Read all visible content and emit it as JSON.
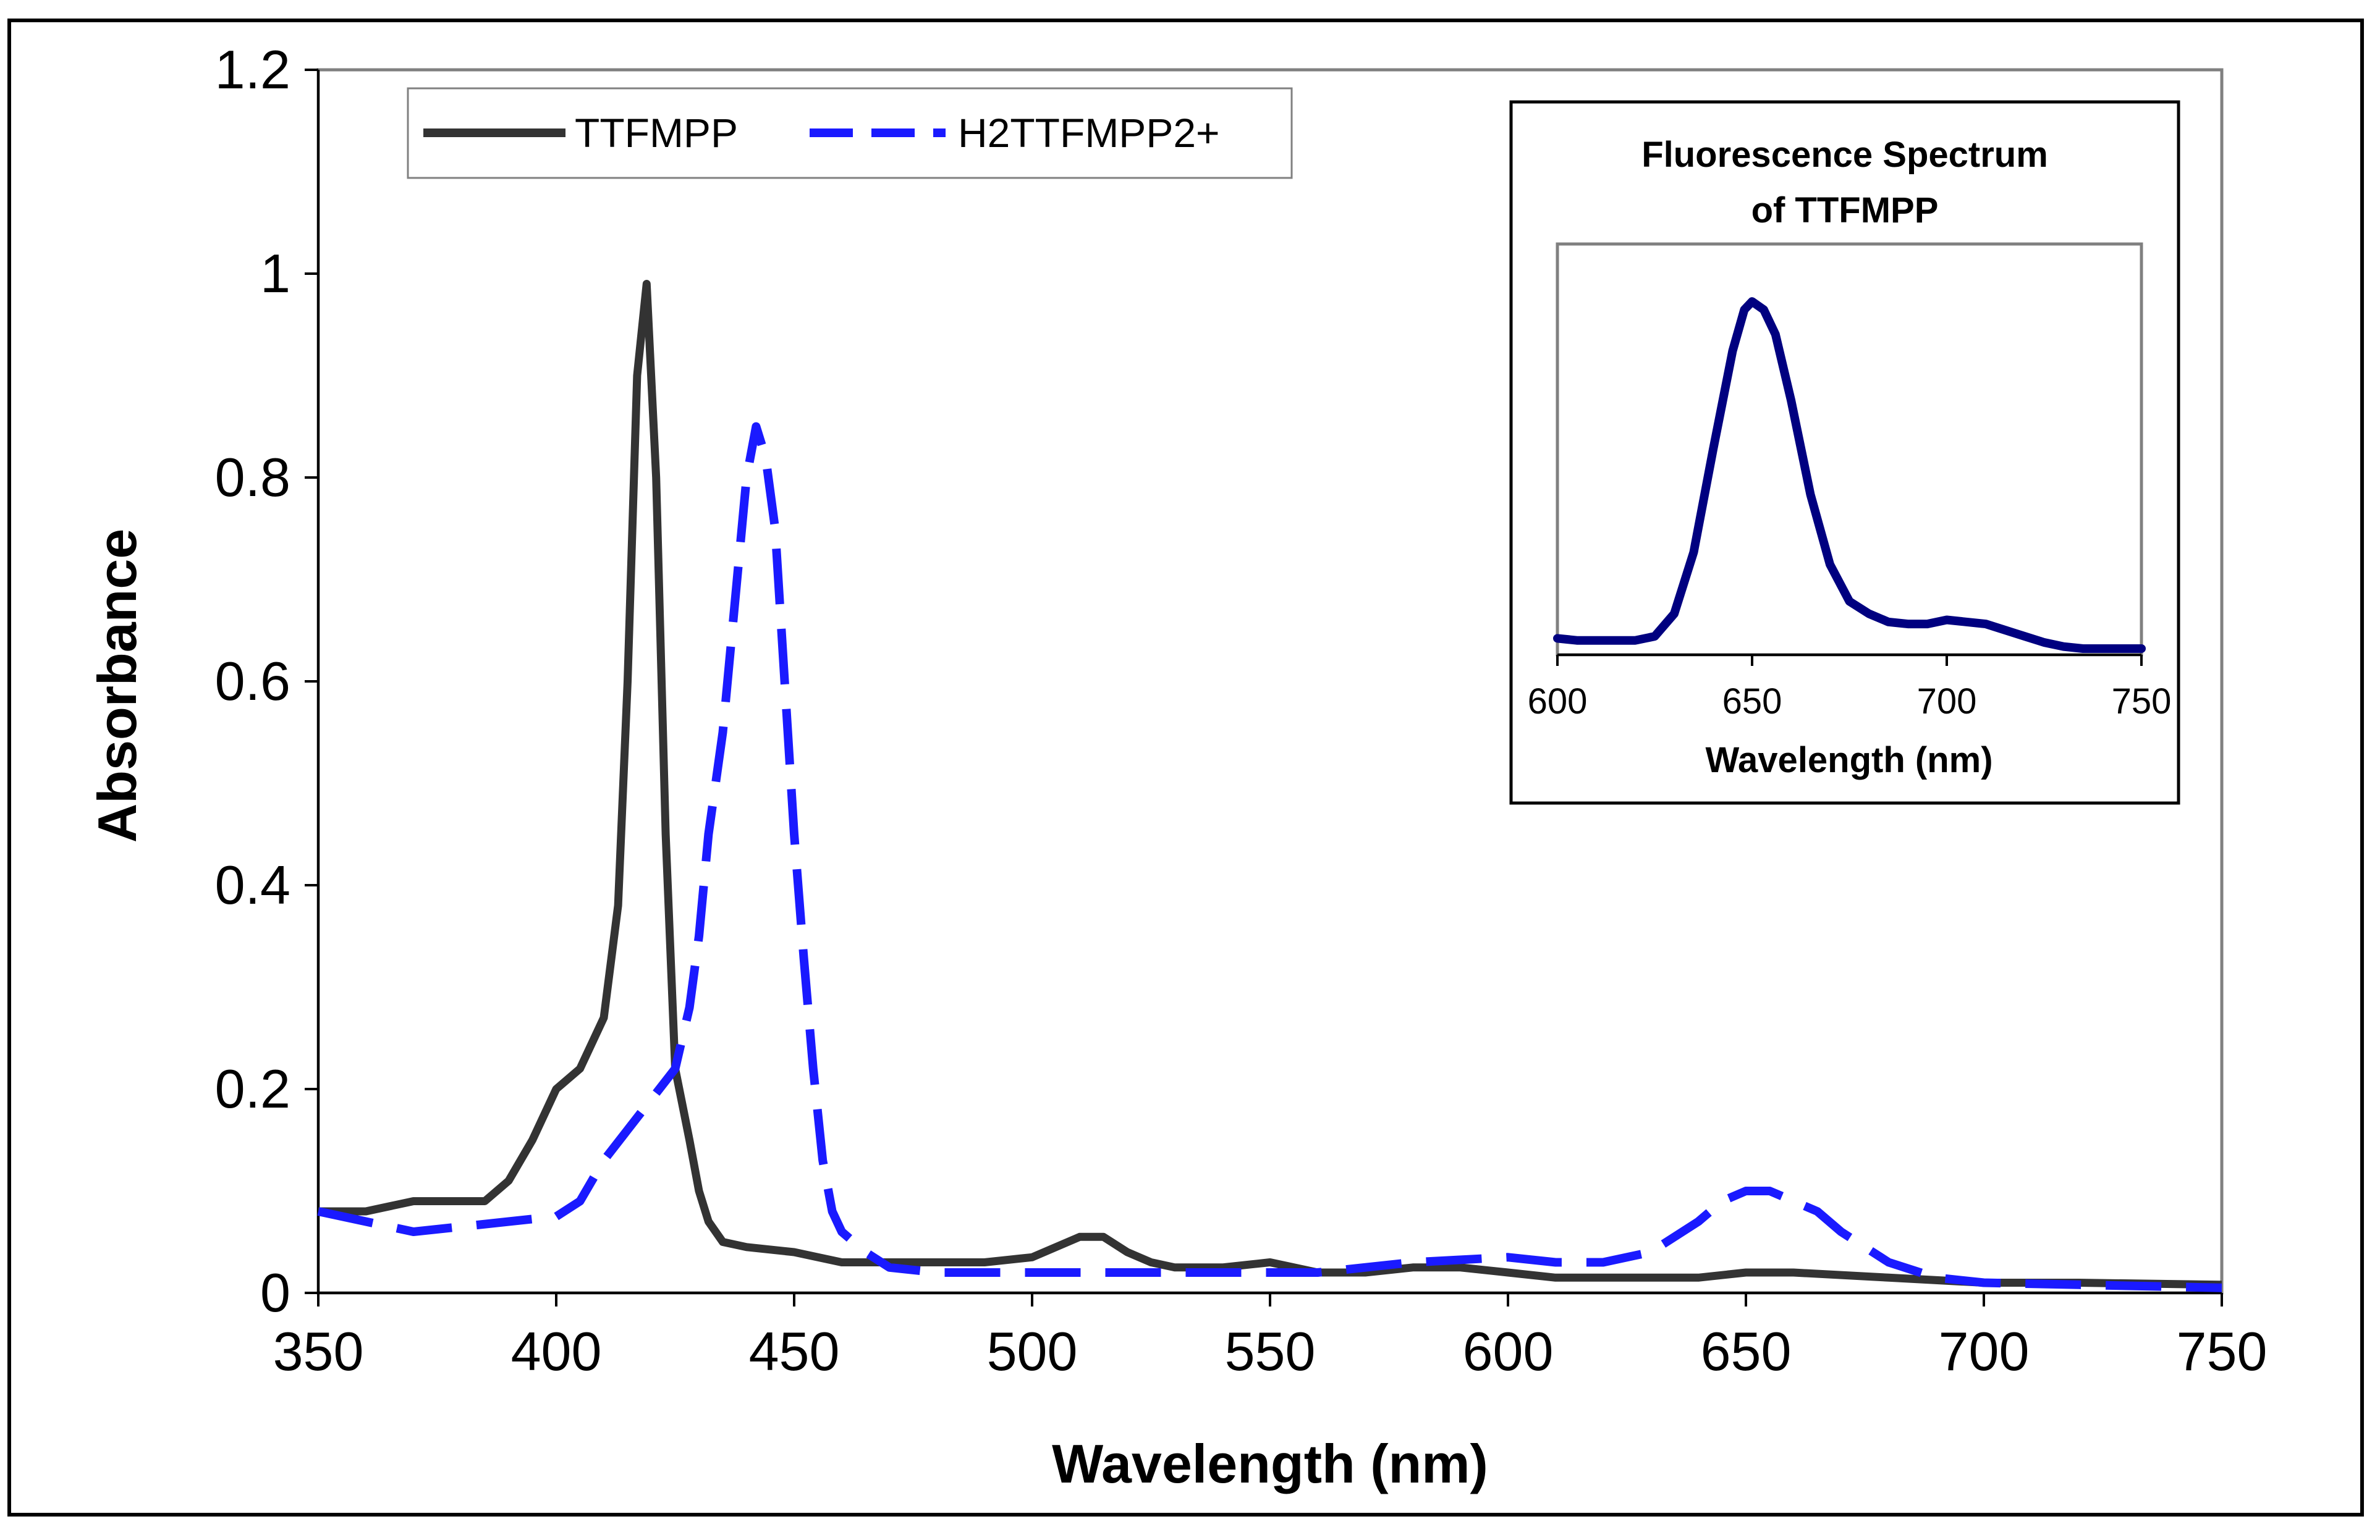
{
  "chart_data": [
    {
      "type": "line",
      "title": "",
      "xlabel": "Wavelength (nm)",
      "ylabel": "Absorbance",
      "xlim": [
        350,
        750
      ],
      "ylim": [
        0,
        1.2
      ],
      "xticks": [
        350,
        400,
        450,
        500,
        550,
        600,
        650,
        700,
        750
      ],
      "xtick_labels": [
        "350",
        "400",
        "450",
        "500",
        "550",
        "600",
        "650",
        "700",
        "750"
      ],
      "yticks": [
        0,
        0.2,
        0.4,
        0.6,
        0.8,
        1,
        1.2
      ],
      "ytick_labels": [
        "0",
        "0.2",
        "0.4",
        "0.6",
        "0.8",
        "1",
        "1.2"
      ],
      "legend_position": "top-left",
      "series": [
        {
          "name": "TTFMPP",
          "color": "#333333",
          "style": "solid",
          "x": [
            350,
            360,
            370,
            385,
            390,
            395,
            400,
            405,
            410,
            413,
            415,
            417,
            419,
            421,
            423,
            425,
            428,
            430,
            432,
            435,
            440,
            450,
            460,
            470,
            480,
            490,
            500,
            505,
            510,
            515,
            520,
            525,
            530,
            540,
            550,
            560,
            570,
            580,
            590,
            600,
            610,
            620,
            640,
            650,
            660,
            680,
            700,
            720,
            750
          ],
          "y": [
            0.08,
            0.08,
            0.09,
            0.09,
            0.11,
            0.15,
            0.2,
            0.22,
            0.27,
            0.38,
            0.6,
            0.9,
            0.99,
            0.8,
            0.45,
            0.22,
            0.15,
            0.1,
            0.07,
            0.05,
            0.045,
            0.04,
            0.03,
            0.03,
            0.03,
            0.03,
            0.035,
            0.045,
            0.055,
            0.055,
            0.04,
            0.03,
            0.025,
            0.025,
            0.03,
            0.02,
            0.02,
            0.025,
            0.025,
            0.02,
            0.015,
            0.015,
            0.015,
            0.02,
            0.02,
            0.015,
            0.01,
            0.01,
            0.008
          ]
        },
        {
          "name": "H2TTFMPP2+",
          "color": "#1a1aff",
          "style": "dashed",
          "x": [
            350,
            360,
            370,
            380,
            390,
            400,
            405,
            410,
            415,
            420,
            425,
            428,
            430,
            432,
            435,
            438,
            440,
            442,
            444,
            446,
            448,
            450,
            452,
            454,
            456,
            458,
            460,
            465,
            470,
            480,
            490,
            500,
            520,
            540,
            560,
            580,
            600,
            610,
            620,
            630,
            640,
            645,
            650,
            655,
            660,
            665,
            670,
            680,
            690,
            700,
            720,
            750
          ],
          "y": [
            0.08,
            0.07,
            0.06,
            0.065,
            0.07,
            0.075,
            0.09,
            0.13,
            0.16,
            0.19,
            0.22,
            0.28,
            0.35,
            0.45,
            0.55,
            0.7,
            0.8,
            0.85,
            0.82,
            0.75,
            0.6,
            0.45,
            0.33,
            0.22,
            0.13,
            0.08,
            0.06,
            0.04,
            0.025,
            0.02,
            0.02,
            0.02,
            0.02,
            0.02,
            0.02,
            0.03,
            0.035,
            0.03,
            0.03,
            0.04,
            0.07,
            0.09,
            0.1,
            0.1,
            0.09,
            0.08,
            0.06,
            0.03,
            0.015,
            0.01,
            0.008,
            0.005
          ]
        }
      ]
    },
    {
      "type": "line",
      "title": "Fluorescence Spectrum of TTFMPP",
      "title_lines": [
        "Fluorescence Spectrum",
        "of TTFMPP"
      ],
      "xlabel": "Wavelength (nm)",
      "ylabel": "",
      "xlim": [
        600,
        750
      ],
      "ylim": [
        0,
        1
      ],
      "xticks": [
        600,
        650,
        700,
        750
      ],
      "xtick_labels": [
        "600",
        "650",
        "700",
        "750"
      ],
      "series": [
        {
          "name": "Fluorescence",
          "color": "#000080",
          "style": "solid",
          "x": [
            600,
            605,
            610,
            615,
            620,
            625,
            630,
            635,
            640,
            645,
            648,
            650,
            653,
            656,
            660,
            665,
            670,
            675,
            680,
            685,
            690,
            695,
            700,
            705,
            710,
            715,
            720,
            725,
            730,
            735,
            740,
            745,
            750
          ],
          "y": [
            0.04,
            0.035,
            0.035,
            0.035,
            0.035,
            0.045,
            0.1,
            0.25,
            0.5,
            0.74,
            0.84,
            0.86,
            0.84,
            0.78,
            0.62,
            0.39,
            0.22,
            0.13,
            0.1,
            0.08,
            0.075,
            0.075,
            0.085,
            0.08,
            0.075,
            0.06,
            0.045,
            0.03,
            0.02,
            0.015,
            0.015,
            0.015,
            0.015
          ]
        }
      ]
    }
  ]
}
